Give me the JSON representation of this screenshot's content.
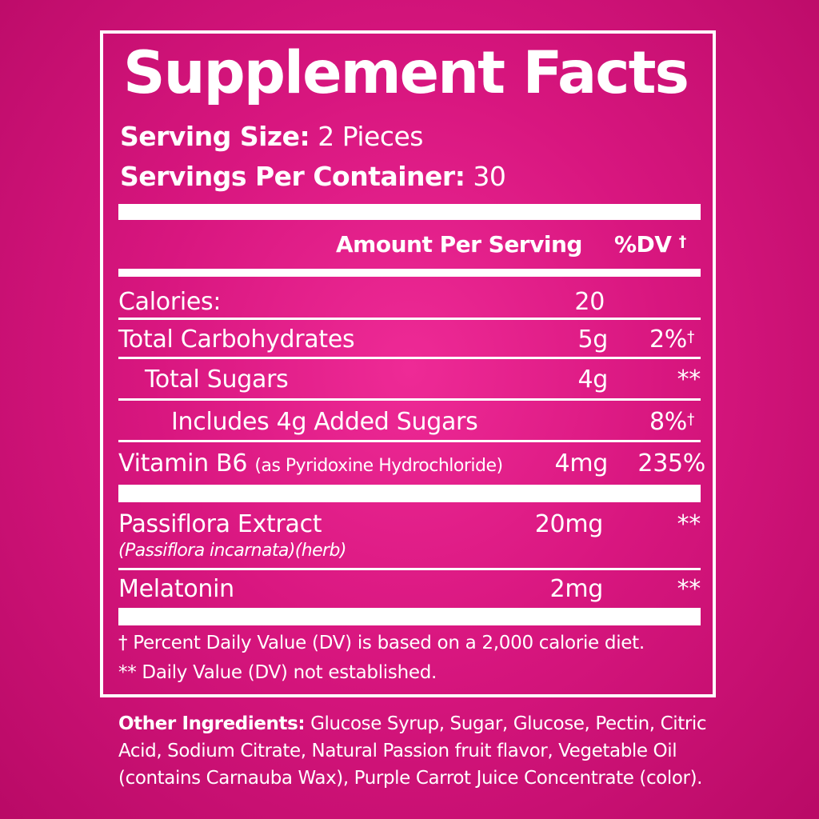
{
  "label": {
    "title": "Supplement Facts",
    "serving_size_label": "Serving Size:",
    "serving_size_value": " 2 Pieces",
    "servings_per_container_label": "Servings Per Container:",
    "servings_per_container_value": " 30",
    "col_amount": "Amount Per Serving",
    "col_dv": "%DV",
    "dagger": "†"
  },
  "rows": [
    {
      "name": "Calories:",
      "amount": "20",
      "dv": ""
    },
    {
      "name": "Total Carbohydrates",
      "amount": "5g",
      "dv": "2%",
      "dv_mark": "†"
    },
    {
      "name": "Total Sugars",
      "amount": "4g",
      "dv": "**"
    },
    {
      "name": "Includes 4g Added Sugars",
      "amount": "",
      "dv": "8%",
      "dv_mark": "†"
    },
    {
      "name": "Vitamin B6",
      "note": "(as Pyridoxine Hydrochloride)",
      "amount": "4mg",
      "dv": "235%"
    },
    {
      "name": "Passiflora Extract",
      "note": "(Passiflora incarnata)(herb)",
      "amount": "20mg",
      "dv": "**"
    },
    {
      "name": "Melatonin",
      "amount": "2mg",
      "dv": "**"
    }
  ],
  "footnotes": {
    "dagger_note": "† Percent Daily Value (DV) is based on a 2,000 calorie diet.",
    "star_note": "** Daily Value (DV) not established."
  },
  "other_ingredients": {
    "label": "Other Ingredients:",
    "text": " Glucose Syrup, Sugar, Glucose, Pectin, Citric Acid, Sodium Citrate, Natural Passion fruit flavor, Vegetable Oil (contains Carnauba Wax), Purple Carrot Juice Concentrate (color)."
  },
  "colors": {
    "background": "#d8167f",
    "text": "#ffffff"
  }
}
